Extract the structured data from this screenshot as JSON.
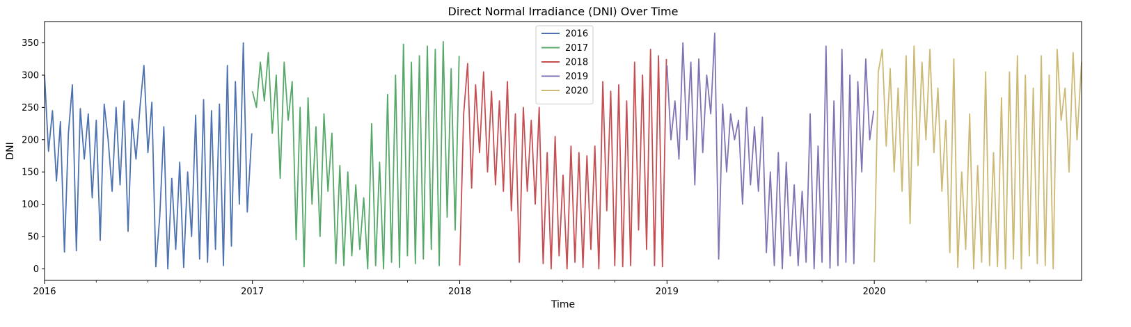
{
  "chart_data": {
    "type": "line",
    "title": "Direct Normal Irradiance (DNI) Over Time",
    "xlabel": "Time",
    "ylabel": "DNI",
    "xlim": [
      "2016-01-01",
      "2020-12-31"
    ],
    "ylim": [
      -18,
      383
    ],
    "x_ticks": [
      "2016",
      "2017",
      "2018",
      "2019",
      "2020"
    ],
    "y_ticks": [
      0,
      50,
      100,
      150,
      200,
      250,
      300,
      350
    ],
    "grid": false,
    "legend_position": "top-center",
    "series": [
      {
        "name": "2016",
        "color": "#4c72b0",
        "x": [
          "2016-01-01",
          "2016-01-08",
          "2016-01-15",
          "2016-01-22",
          "2016-01-29",
          "2016-02-05",
          "2016-02-12",
          "2016-02-19",
          "2016-02-26",
          "2016-03-04",
          "2016-03-11",
          "2016-03-18",
          "2016-03-25",
          "2016-04-01",
          "2016-04-08",
          "2016-04-15",
          "2016-04-22",
          "2016-04-29",
          "2016-05-06",
          "2016-05-13",
          "2016-05-20",
          "2016-05-27",
          "2016-06-03",
          "2016-06-10",
          "2016-06-17",
          "2016-06-24",
          "2016-07-01",
          "2016-07-08",
          "2016-07-15",
          "2016-07-22",
          "2016-07-29",
          "2016-08-05",
          "2016-08-12",
          "2016-08-19",
          "2016-08-26",
          "2016-09-02",
          "2016-09-09",
          "2016-09-16",
          "2016-09-23",
          "2016-09-30",
          "2016-10-07",
          "2016-10-14",
          "2016-10-21",
          "2016-10-28",
          "2016-11-04",
          "2016-11-11",
          "2016-11-18",
          "2016-11-25",
          "2016-12-02",
          "2016-12-09",
          "2016-12-16",
          "2016-12-23",
          "2016-12-31"
        ],
        "values": [
          300,
          182,
          245,
          136,
          228,
          26,
          210,
          285,
          28,
          248,
          170,
          240,
          110,
          230,
          44,
          255,
          200,
          120,
          250,
          130,
          260,
          58,
          232,
          170,
          250,
          315,
          180,
          258,
          3,
          82,
          220,
          0,
          140,
          30,
          165,
          2,
          150,
          50,
          238,
          15,
          262,
          10,
          245,
          30,
          255,
          5,
          315,
          35,
          290,
          100,
          350,
          88,
          210
        ]
      },
      {
        "name": "2017",
        "color": "#55a868",
        "x": [
          "2017-01-01",
          "2017-01-08",
          "2017-01-15",
          "2017-01-22",
          "2017-01-29",
          "2017-02-05",
          "2017-02-12",
          "2017-02-19",
          "2017-02-26",
          "2017-03-05",
          "2017-03-12",
          "2017-03-19",
          "2017-03-26",
          "2017-04-02",
          "2017-04-09",
          "2017-04-16",
          "2017-04-23",
          "2017-04-30",
          "2017-05-07",
          "2017-05-14",
          "2017-05-21",
          "2017-05-28",
          "2017-06-04",
          "2017-06-11",
          "2017-06-18",
          "2017-06-25",
          "2017-07-02",
          "2017-07-09",
          "2017-07-16",
          "2017-07-23",
          "2017-07-30",
          "2017-08-06",
          "2017-08-13",
          "2017-08-20",
          "2017-08-27",
          "2017-09-03",
          "2017-09-10",
          "2017-09-17",
          "2017-09-24",
          "2017-10-01",
          "2017-10-08",
          "2017-10-15",
          "2017-10-22",
          "2017-10-29",
          "2017-11-05",
          "2017-11-12",
          "2017-11-19",
          "2017-11-26",
          "2017-12-03",
          "2017-12-10",
          "2017-12-17",
          "2017-12-24",
          "2017-12-31"
        ],
        "values": [
          275,
          250,
          320,
          260,
          335,
          210,
          300,
          140,
          320,
          230,
          290,
          45,
          250,
          3,
          265,
          100,
          220,
          50,
          240,
          120,
          210,
          8,
          160,
          5,
          150,
          20,
          130,
          30,
          110,
          0,
          225,
          5,
          165,
          0,
          270,
          10,
          300,
          2,
          348,
          20,
          320,
          8,
          330,
          15,
          345,
          30,
          340,
          5,
          352,
          80,
          310,
          60,
          330
        ]
      },
      {
        "name": "2018",
        "color": "#c44e52",
        "x": [
          "2018-01-01",
          "2018-01-08",
          "2018-01-15",
          "2018-01-22",
          "2018-01-29",
          "2018-02-05",
          "2018-02-12",
          "2018-02-19",
          "2018-02-26",
          "2018-03-05",
          "2018-03-12",
          "2018-03-19",
          "2018-03-26",
          "2018-04-02",
          "2018-04-09",
          "2018-04-16",
          "2018-04-23",
          "2018-04-30",
          "2018-05-07",
          "2018-05-14",
          "2018-05-21",
          "2018-05-28",
          "2018-06-04",
          "2018-06-11",
          "2018-06-18",
          "2018-06-25",
          "2018-07-02",
          "2018-07-09",
          "2018-07-16",
          "2018-07-23",
          "2018-07-30",
          "2018-08-06",
          "2018-08-13",
          "2018-08-20",
          "2018-08-27",
          "2018-09-03",
          "2018-09-10",
          "2018-09-17",
          "2018-09-24",
          "2018-10-01",
          "2018-10-08",
          "2018-10-15",
          "2018-10-22",
          "2018-10-29",
          "2018-11-05",
          "2018-11-12",
          "2018-11-19",
          "2018-11-26",
          "2018-12-03",
          "2018-12-10",
          "2018-12-17",
          "2018-12-24",
          "2018-12-31"
        ],
        "values": [
          5,
          240,
          318,
          125,
          285,
          180,
          305,
          150,
          275,
          130,
          260,
          120,
          290,
          90,
          240,
          10,
          250,
          120,
          230,
          100,
          250,
          8,
          180,
          0,
          205,
          20,
          145,
          0,
          190,
          10,
          180,
          2,
          175,
          30,
          190,
          0,
          290,
          90,
          275,
          5,
          285,
          3,
          260,
          5,
          320,
          60,
          300,
          30,
          340,
          5,
          330,
          3,
          325
        ]
      },
      {
        "name": "2019",
        "color": "#8172b3",
        "x": [
          "2019-01-01",
          "2019-01-08",
          "2019-01-15",
          "2019-01-22",
          "2019-01-29",
          "2019-02-05",
          "2019-02-12",
          "2019-02-19",
          "2019-02-26",
          "2019-03-05",
          "2019-03-12",
          "2019-03-19",
          "2019-03-26",
          "2019-04-02",
          "2019-04-09",
          "2019-04-16",
          "2019-04-23",
          "2019-04-30",
          "2019-05-07",
          "2019-05-14",
          "2019-05-21",
          "2019-05-28",
          "2019-06-04",
          "2019-06-11",
          "2019-06-18",
          "2019-06-25",
          "2019-07-02",
          "2019-07-09",
          "2019-07-16",
          "2019-07-23",
          "2019-07-30",
          "2019-08-06",
          "2019-08-13",
          "2019-08-20",
          "2019-08-27",
          "2019-09-03",
          "2019-09-10",
          "2019-09-17",
          "2019-09-24",
          "2019-10-01",
          "2019-10-08",
          "2019-10-15",
          "2019-10-22",
          "2019-10-29",
          "2019-11-05",
          "2019-11-12",
          "2019-11-19",
          "2019-11-26",
          "2019-12-03",
          "2019-12-10",
          "2019-12-17",
          "2019-12-24",
          "2019-12-31"
        ],
        "values": [
          315,
          200,
          260,
          170,
          350,
          200,
          320,
          130,
          325,
          180,
          300,
          240,
          365,
          15,
          255,
          150,
          240,
          200,
          230,
          100,
          250,
          130,
          220,
          120,
          235,
          25,
          150,
          5,
          180,
          0,
          165,
          20,
          130,
          5,
          120,
          10,
          240,
          0,
          190,
          10,
          345,
          1,
          260,
          5,
          340,
          10,
          300,
          8,
          290,
          150,
          325,
          200,
          245
        ]
      },
      {
        "name": "2020",
        "color": "#ccb974",
        "x": [
          "2020-01-01",
          "2020-01-08",
          "2020-01-15",
          "2020-01-22",
          "2020-01-29",
          "2020-02-05",
          "2020-02-12",
          "2020-02-19",
          "2020-02-26",
          "2020-03-04",
          "2020-03-11",
          "2020-03-18",
          "2020-03-25",
          "2020-04-01",
          "2020-04-08",
          "2020-04-15",
          "2020-04-22",
          "2020-04-29",
          "2020-05-06",
          "2020-05-13",
          "2020-05-20",
          "2020-05-27",
          "2020-06-03",
          "2020-06-10",
          "2020-06-17",
          "2020-06-24",
          "2020-07-01",
          "2020-07-08",
          "2020-07-15",
          "2020-07-22",
          "2020-07-29",
          "2020-08-05",
          "2020-08-12",
          "2020-08-19",
          "2020-08-26",
          "2020-09-02",
          "2020-09-09",
          "2020-09-16",
          "2020-09-23",
          "2020-09-30",
          "2020-10-07",
          "2020-10-14",
          "2020-10-21",
          "2020-10-28",
          "2020-11-04",
          "2020-11-11",
          "2020-11-18",
          "2020-11-25",
          "2020-12-02",
          "2020-12-09",
          "2020-12-16",
          "2020-12-23",
          "2020-12-31"
        ],
        "values": [
          10,
          305,
          340,
          190,
          310,
          150,
          280,
          120,
          330,
          70,
          345,
          160,
          320,
          200,
          340,
          180,
          280,
          120,
          230,
          25,
          325,
          2,
          150,
          30,
          240,
          0,
          160,
          10,
          305,
          5,
          180,
          3,
          265,
          0,
          305,
          15,
          330,
          0,
          300,
          20,
          280,
          8,
          330,
          5,
          300,
          0,
          340,
          230,
          280,
          150,
          335,
          200,
          320
        ]
      }
    ]
  }
}
